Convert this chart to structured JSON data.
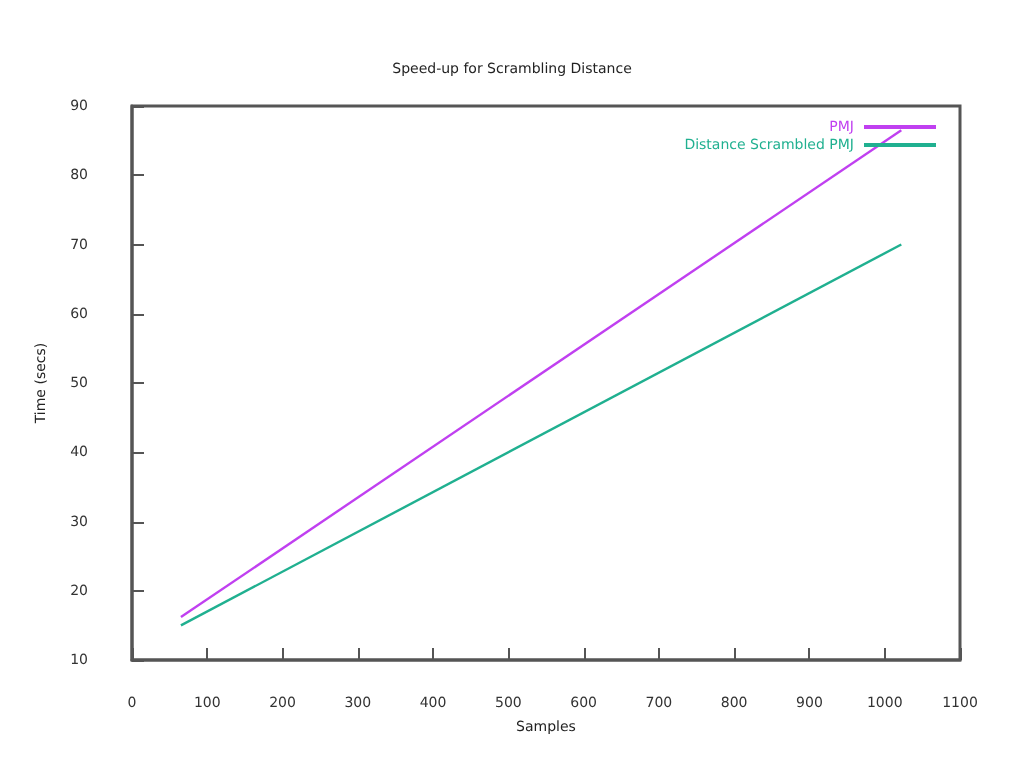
{
  "chart_data": {
    "type": "line",
    "title": "Speed-up for Scrambling Distance",
    "xlabel": "Samples",
    "ylabel": "Time (secs)",
    "x": [
      65,
      1022
    ],
    "series": [
      {
        "name": "PMJ",
        "color": "#c040f0",
        "values": [
          16.2,
          86.5
        ]
      },
      {
        "name": "Distance Scrambled PMJ",
        "color": "#20b090",
        "values": [
          15,
          70
        ]
      }
    ],
    "xlim": [
      0,
      1100
    ],
    "xticks": [
      0,
      100,
      200,
      300,
      400,
      500,
      600,
      700,
      800,
      900,
      1000,
      1100
    ],
    "ylim": [
      10,
      90
    ],
    "yticks": [
      10,
      20,
      30,
      40,
      50,
      60,
      70,
      80,
      90
    ],
    "grid": false,
    "legend": "top right",
    "marker": "none",
    "line_style": "solid"
  }
}
